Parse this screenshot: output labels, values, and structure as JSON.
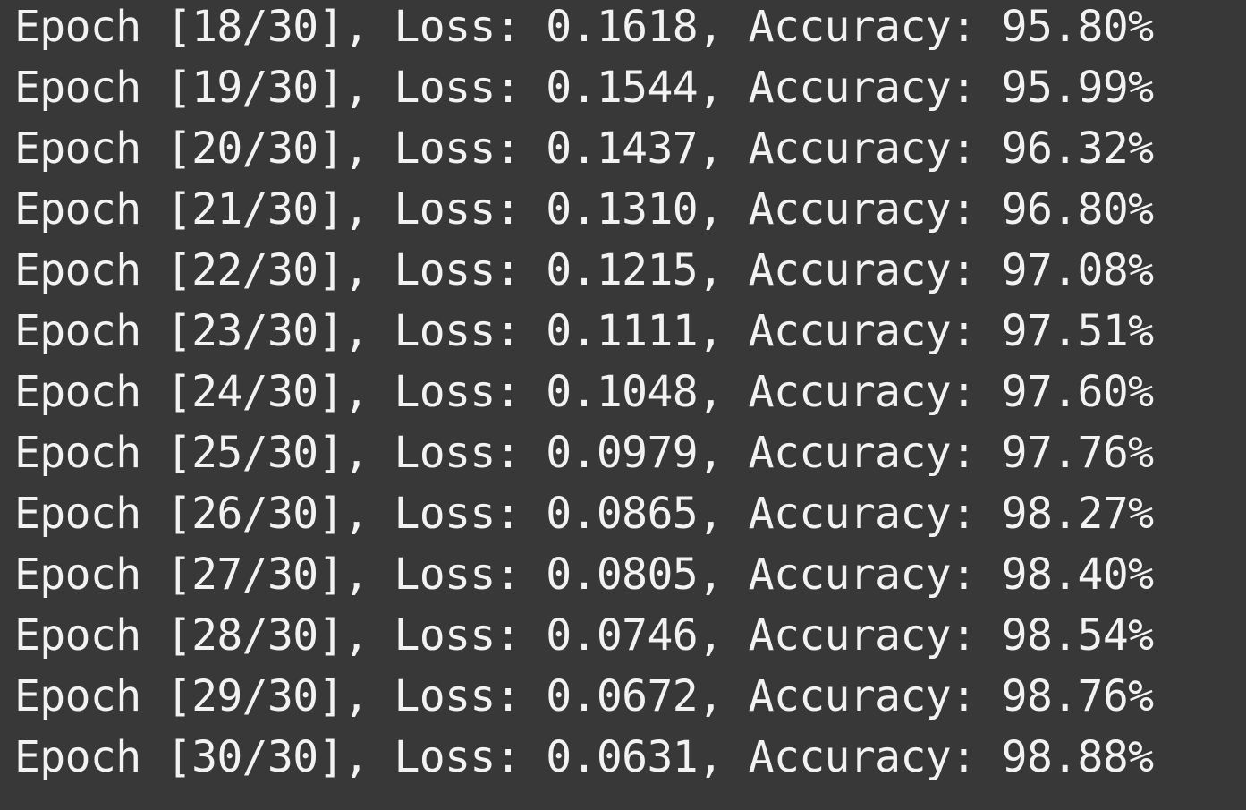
{
  "console": {
    "lines": [
      "Epoch [18/30], Loss: 0.1618, Accuracy: 95.80%",
      "Epoch [19/30], Loss: 0.1544, Accuracy: 95.99%",
      "Epoch [20/30], Loss: 0.1437, Accuracy: 96.32%",
      "Epoch [21/30], Loss: 0.1310, Accuracy: 96.80%",
      "Epoch [22/30], Loss: 0.1215, Accuracy: 97.08%",
      "Epoch [23/30], Loss: 0.1111, Accuracy: 97.51%",
      "Epoch [24/30], Loss: 0.1048, Accuracy: 97.60%",
      "Epoch [25/30], Loss: 0.0979, Accuracy: 97.76%",
      "Epoch [26/30], Loss: 0.0865, Accuracy: 98.27%",
      "Epoch [27/30], Loss: 0.0805, Accuracy: 98.40%",
      "Epoch [28/30], Loss: 0.0746, Accuracy: 98.54%",
      "Epoch [29/30], Loss: 0.0672, Accuracy: 98.76%",
      "Epoch [30/30], Loss: 0.0631, Accuracy: 98.88%"
    ]
  },
  "colors": {
    "background": "#383838",
    "text": "#f2f2f2"
  }
}
